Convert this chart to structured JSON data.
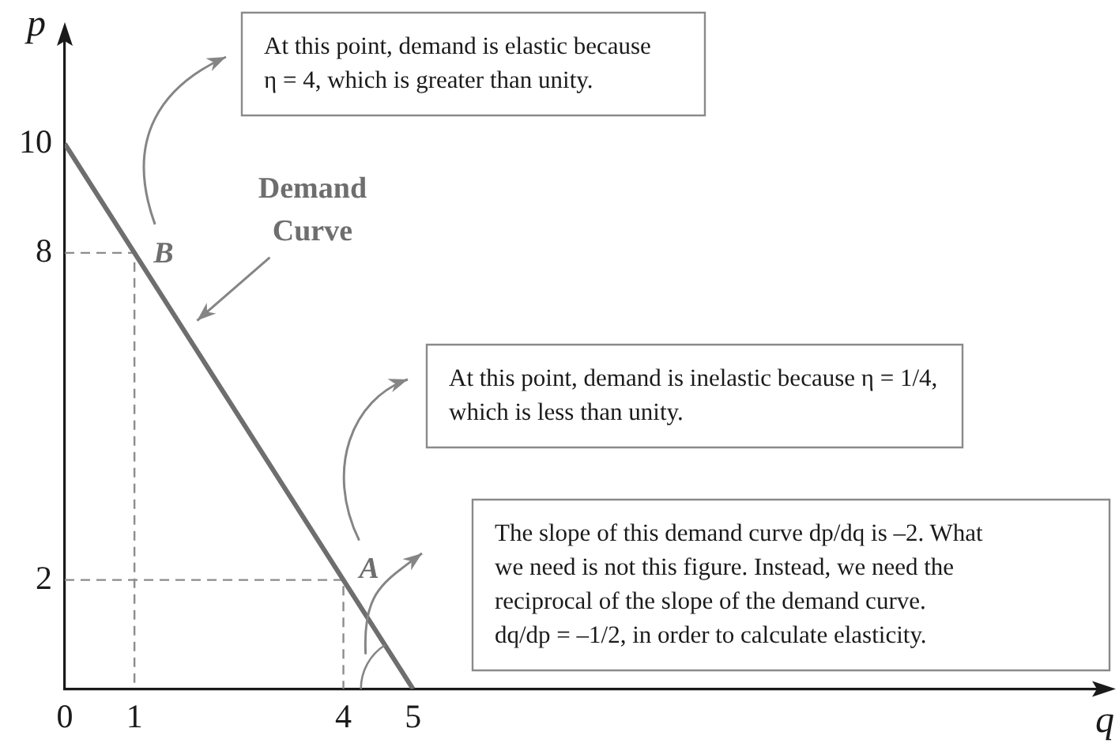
{
  "chart_data": {
    "type": "line",
    "xlabel": "q",
    "ylabel": "p",
    "xlim": [
      0,
      15
    ],
    "ylim": [
      0,
      12
    ],
    "xticks": [
      0,
      1,
      4,
      5
    ],
    "yticks": [
      2,
      8,
      10
    ],
    "grid": false,
    "legend": false,
    "marker": "none",
    "series": [
      {
        "name": "Demand Curve",
        "color": "#6e6e6e",
        "x": [
          0,
          5
        ],
        "values": [
          10,
          0
        ]
      },
      {
        "color": "#8c8c8c",
        "x": [
          0,
          1,
          1
        ],
        "values": [
          8,
          8,
          0
        ],
        "line_style": "dashed"
      },
      {
        "color": "#8c8c8c",
        "x": [
          0,
          4,
          4
        ],
        "values": [
          2,
          2,
          0
        ],
        "line_style": "dashed"
      }
    ],
    "annotations": [
      {
        "text": "B",
        "x": 1,
        "y": 8
      },
      {
        "text": "A",
        "x": 4,
        "y": 2
      },
      "At this point, demand is elastic because\nη = 4, which is greater than unity.",
      "At this point, demand is inelastic because η = 1/4,\nwhich is less than unity.",
      "The slope of this demand curve dp/dq is –2. What\nwe need is not this figure. Instead, we need the\nreciprocal of the slope of the demand curve.\ndq/dp = –1/2, in order to calculate elasticity."
    ]
  }
}
